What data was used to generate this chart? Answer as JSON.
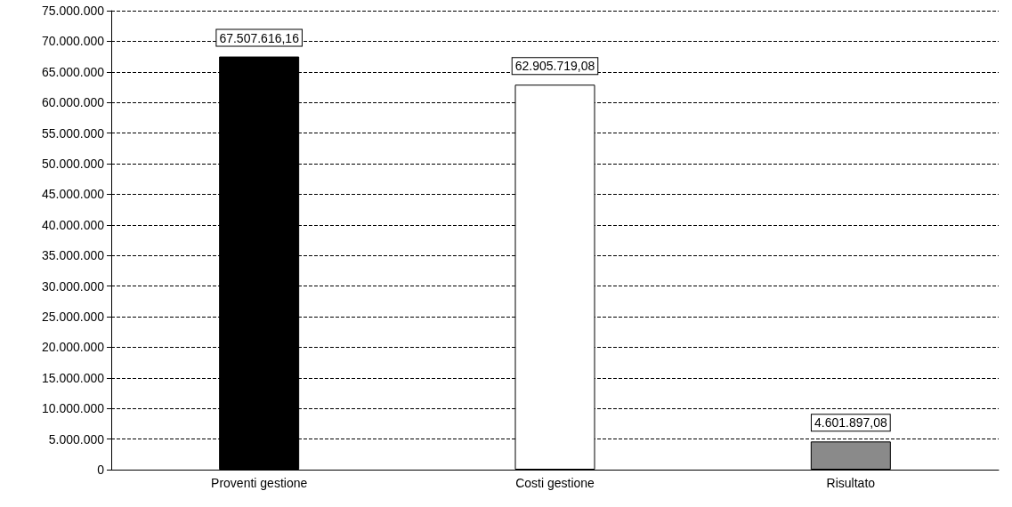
{
  "chart_data": {
    "type": "bar",
    "categories": [
      "Proventi gestione",
      "Costi gestione",
      "Risultato"
    ],
    "values": [
      67507616.16,
      62905719.08,
      4601897.08
    ],
    "colors": [
      "#000000",
      "#ffffff",
      "#8a8a8a"
    ],
    "value_labels": [
      "67.507.616,16",
      "62.905.719,08",
      "4.601.897,08"
    ],
    "ylim": [
      0,
      75000000
    ],
    "yticks": [
      {
        "value": 0,
        "label": "0"
      },
      {
        "value": 5000000,
        "label": "5.000.000"
      },
      {
        "value": 10000000,
        "label": "10.000.000"
      },
      {
        "value": 15000000,
        "label": "15.000.000"
      },
      {
        "value": 20000000,
        "label": "20.000.000"
      },
      {
        "value": 25000000,
        "label": "25.000.000"
      },
      {
        "value": 30000000,
        "label": "30.000.000"
      },
      {
        "value": 35000000,
        "label": "35.000.000"
      },
      {
        "value": 40000000,
        "label": "40.000.000"
      },
      {
        "value": 45000000,
        "label": "45.000.000"
      },
      {
        "value": 50000000,
        "label": "50.000.000"
      },
      {
        "value": 55000000,
        "label": "55.000.000"
      },
      {
        "value": 60000000,
        "label": "60.000.000"
      },
      {
        "value": 65000000,
        "label": "65.000.000"
      },
      {
        "value": 70000000,
        "label": "70.000.000"
      },
      {
        "value": 75000000,
        "label": "75.000.000"
      }
    ],
    "grid": "y"
  }
}
